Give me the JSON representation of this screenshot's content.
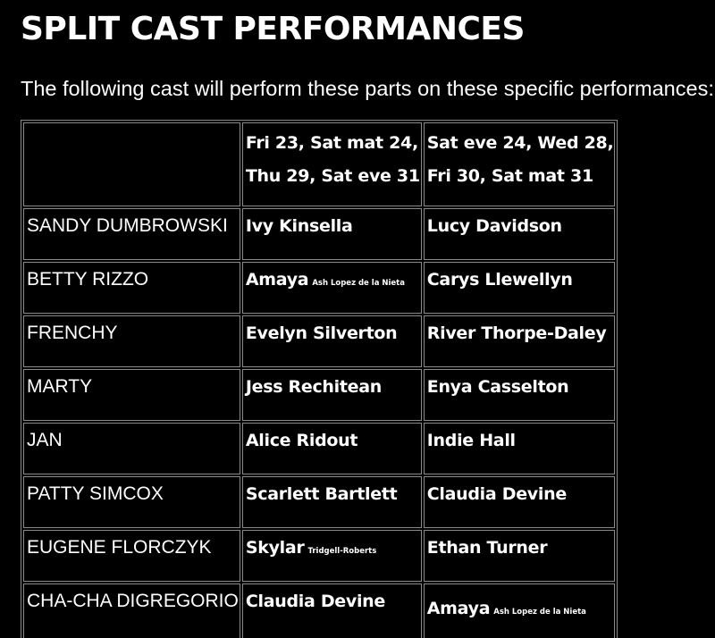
{
  "title": "SPLIT CAST PERFORMANCES",
  "intro": "The following cast will perform these parts on these specific performances:",
  "table": {
    "header": {
      "col1_line1": "Fri 23, Sat mat 24,",
      "col1_line2": "Thu 29, Sat eve 31",
      "col2_line1": "Sat eve 24, Wed 28,",
      "col2_line2": "Fri 30, Sat mat 31"
    },
    "rows": [
      {
        "role": "SANDY DUMBROWSKI",
        "cast_a": "Ivy Kinsella",
        "cast_a_note": "",
        "cast_b": "Lucy Davidson",
        "cast_b_note": ""
      },
      {
        "role": "BETTY RIZZO",
        "cast_a": "Amaya",
        "cast_a_note": "Ash Lopez de la Nieta",
        "cast_b": "Carys Llewellyn",
        "cast_b_note": ""
      },
      {
        "role": "FRENCHY",
        "cast_a": "Evelyn Silverton",
        "cast_a_note": "",
        "cast_b": "River Thorpe-Daley",
        "cast_b_note": ""
      },
      {
        "role": "MARTY",
        "cast_a": "Jess Rechitean",
        "cast_a_note": "",
        "cast_b": "Enya Casselton",
        "cast_b_note": ""
      },
      {
        "role": "JAN",
        "cast_a": "Alice Ridout",
        "cast_a_note": "",
        "cast_b": "Indie Hall",
        "cast_b_note": ""
      },
      {
        "role": "PATTY SIMCOX",
        "cast_a": "Scarlett Bartlett",
        "cast_a_note": "",
        "cast_b": "Claudia Devine",
        "cast_b_note": ""
      },
      {
        "role": "EUGENE FLORCZYK",
        "cast_a": "Skylar",
        "cast_a_note": "Tridgell-Roberts",
        "cast_b": "Ethan Turner",
        "cast_b_note": ""
      },
      {
        "role": "CHA-CHA DIGREGORIO",
        "cast_a": "Claudia Devine",
        "cast_a_note": "",
        "cast_b": "Amaya",
        "cast_b_note": "Ash Lopez de la Nieta"
      }
    ]
  }
}
